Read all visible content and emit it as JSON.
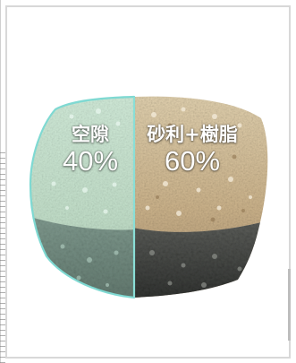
{
  "labels": {
    "void": {
      "name": "空隙",
      "percent": "40%"
    },
    "gravel_resin": {
      "name": "砂利+樹脂",
      "percent": "60%"
    }
  },
  "colors": {
    "void_outline": "#7fd9d2",
    "void_tint": "#bfe9dc",
    "gravel_top": "#d8c7a4",
    "gravel_bottom": "#4a4c4a"
  }
}
